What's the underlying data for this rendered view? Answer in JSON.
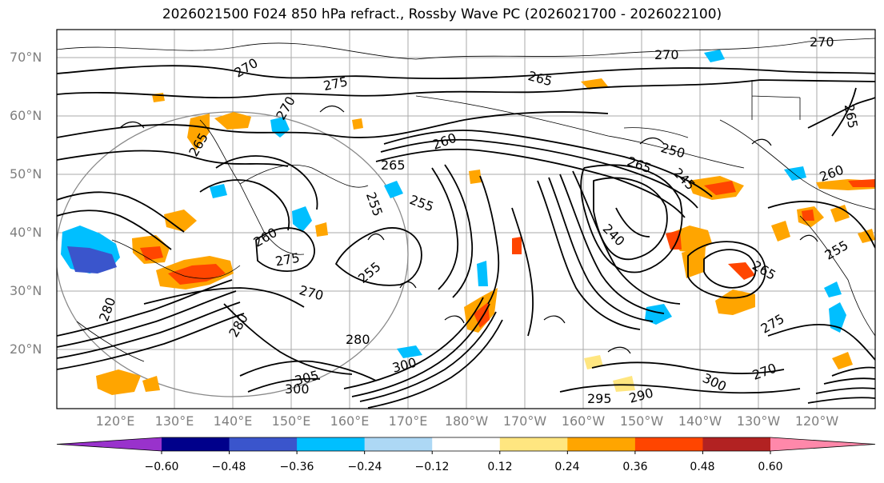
{
  "title": "2026021500 F024 850 hPa refract., Rossby Wave PC (2026021700 - 2026022100)",
  "latitude_labels": [
    "70°N",
    "60°N",
    "50°N",
    "40°N",
    "30°N",
    "20°N"
  ],
  "longitude_labels": [
    "120°E",
    "130°E",
    "140°E",
    "150°E",
    "160°E",
    "170°E",
    "180°W",
    "170°W",
    "160°W",
    "150°W",
    "140°W",
    "130°W",
    "120°W"
  ],
  "contour_labels": [
    "270",
    "275",
    "265",
    "270",
    "265",
    "260",
    "265",
    "255",
    "255",
    "260",
    "250",
    "245",
    "240",
    "265",
    "265",
    "255",
    "275",
    "270",
    "280",
    "255",
    "280",
    "280",
    "300",
    "305",
    "300",
    "295",
    "290",
    "300",
    "270",
    "270",
    "270",
    "275",
    "265",
    "260"
  ],
  "colorbar": {
    "ticks": [
      "−0.60",
      "−0.48",
      "−0.36",
      "−0.24",
      "−0.12",
      "0.12",
      "0.24",
      "0.36",
      "0.48",
      "0.60"
    ],
    "colors": [
      "#9932cc",
      "#00008b",
      "#3a55cc",
      "#00bfff",
      "#add8f5",
      "#ffffff",
      "#ffe680",
      "#ffa500",
      "#ff4500",
      "#b22222",
      "#ff88aa"
    ]
  }
}
